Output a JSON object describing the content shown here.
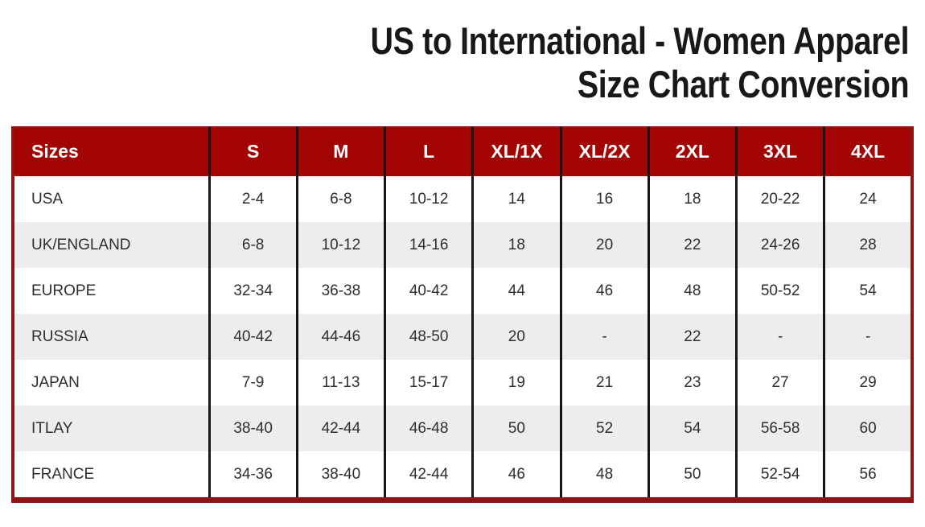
{
  "title": {
    "line1": "US to International - Women Apparel",
    "line2": "Size Chart Conversion"
  },
  "colors": {
    "header_bg": "#a30404",
    "outer_border": "#8e1414",
    "alt_row_bg": "#ededed",
    "column_divider": "#151515",
    "header_text": "#ffffff",
    "body_text": "#2e2e2e"
  },
  "chart_data": {
    "type": "table",
    "title": "US to International - Women Apparel Size Chart Conversion",
    "columns": [
      "Sizes",
      "S",
      "M",
      "L",
      "XL/1X",
      "XL/2X",
      "2XL",
      "3XL",
      "4XL"
    ],
    "rows": [
      {
        "region": "USA",
        "values": [
          "2-4",
          "6-8",
          "10-12",
          "14",
          "16",
          "18",
          "20-22",
          "24"
        ]
      },
      {
        "region": "UK/ENGLAND",
        "values": [
          "6-8",
          "10-12",
          "14-16",
          "18",
          "20",
          "22",
          "24-26",
          "28"
        ]
      },
      {
        "region": "EUROPE",
        "values": [
          "32-34",
          "36-38",
          "40-42",
          "44",
          "46",
          "48",
          "50-52",
          "54"
        ]
      },
      {
        "region": "RUSSIA",
        "values": [
          "40-42",
          "44-46",
          "48-50",
          "20",
          "-",
          "22",
          "-",
          "-"
        ]
      },
      {
        "region": "JAPAN",
        "values": [
          "7-9",
          "11-13",
          "15-17",
          "19",
          "21",
          "23",
          "27",
          "29"
        ]
      },
      {
        "region": "ITLAY",
        "values": [
          "38-40",
          "42-44",
          "46-48",
          "50",
          "52",
          "54",
          "56-58",
          "60"
        ]
      },
      {
        "region": "FRANCE",
        "values": [
          "34-36",
          "38-40",
          "42-44",
          "46",
          "48",
          "50",
          "52-54",
          "56"
        ]
      }
    ]
  }
}
